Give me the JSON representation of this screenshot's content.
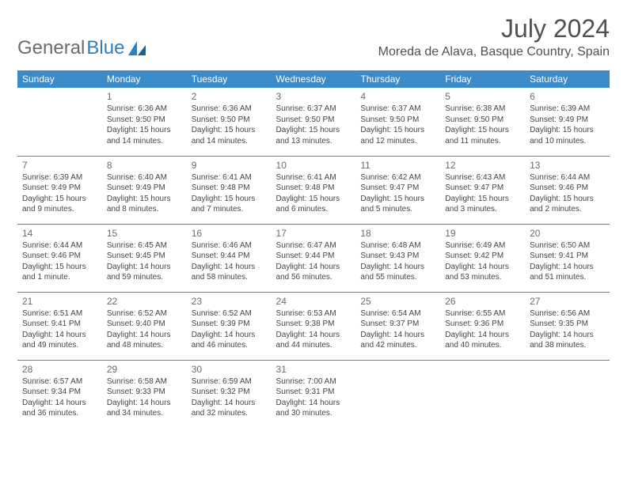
{
  "logo": {
    "text1": "General",
    "text2": "Blue"
  },
  "header": {
    "month": "July 2024",
    "location": "Moreda de Alava, Basque Country, Spain"
  },
  "colors": {
    "header_bg": "#3b8bc9",
    "header_text": "#ffffff",
    "cell_border": "#3b8bc9",
    "logo_gray": "#6b6b6b",
    "logo_blue": "#2f7fbf"
  },
  "weekdays": [
    "Sunday",
    "Monday",
    "Tuesday",
    "Wednesday",
    "Thursday",
    "Friday",
    "Saturday"
  ],
  "grid": [
    [
      null,
      {
        "n": "1",
        "r": "Sunrise: 6:36 AM",
        "s": "Sunset: 9:50 PM",
        "d1": "Daylight: 15 hours",
        "d2": "and 14 minutes."
      },
      {
        "n": "2",
        "r": "Sunrise: 6:36 AM",
        "s": "Sunset: 9:50 PM",
        "d1": "Daylight: 15 hours",
        "d2": "and 14 minutes."
      },
      {
        "n": "3",
        "r": "Sunrise: 6:37 AM",
        "s": "Sunset: 9:50 PM",
        "d1": "Daylight: 15 hours",
        "d2": "and 13 minutes."
      },
      {
        "n": "4",
        "r": "Sunrise: 6:37 AM",
        "s": "Sunset: 9:50 PM",
        "d1": "Daylight: 15 hours",
        "d2": "and 12 minutes."
      },
      {
        "n": "5",
        "r": "Sunrise: 6:38 AM",
        "s": "Sunset: 9:50 PM",
        "d1": "Daylight: 15 hours",
        "d2": "and 11 minutes."
      },
      {
        "n": "6",
        "r": "Sunrise: 6:39 AM",
        "s": "Sunset: 9:49 PM",
        "d1": "Daylight: 15 hours",
        "d2": "and 10 minutes."
      }
    ],
    [
      {
        "n": "7",
        "r": "Sunrise: 6:39 AM",
        "s": "Sunset: 9:49 PM",
        "d1": "Daylight: 15 hours",
        "d2": "and 9 minutes."
      },
      {
        "n": "8",
        "r": "Sunrise: 6:40 AM",
        "s": "Sunset: 9:49 PM",
        "d1": "Daylight: 15 hours",
        "d2": "and 8 minutes."
      },
      {
        "n": "9",
        "r": "Sunrise: 6:41 AM",
        "s": "Sunset: 9:48 PM",
        "d1": "Daylight: 15 hours",
        "d2": "and 7 minutes."
      },
      {
        "n": "10",
        "r": "Sunrise: 6:41 AM",
        "s": "Sunset: 9:48 PM",
        "d1": "Daylight: 15 hours",
        "d2": "and 6 minutes."
      },
      {
        "n": "11",
        "r": "Sunrise: 6:42 AM",
        "s": "Sunset: 9:47 PM",
        "d1": "Daylight: 15 hours",
        "d2": "and 5 minutes."
      },
      {
        "n": "12",
        "r": "Sunrise: 6:43 AM",
        "s": "Sunset: 9:47 PM",
        "d1": "Daylight: 15 hours",
        "d2": "and 3 minutes."
      },
      {
        "n": "13",
        "r": "Sunrise: 6:44 AM",
        "s": "Sunset: 9:46 PM",
        "d1": "Daylight: 15 hours",
        "d2": "and 2 minutes."
      }
    ],
    [
      {
        "n": "14",
        "r": "Sunrise: 6:44 AM",
        "s": "Sunset: 9:46 PM",
        "d1": "Daylight: 15 hours",
        "d2": "and 1 minute."
      },
      {
        "n": "15",
        "r": "Sunrise: 6:45 AM",
        "s": "Sunset: 9:45 PM",
        "d1": "Daylight: 14 hours",
        "d2": "and 59 minutes."
      },
      {
        "n": "16",
        "r": "Sunrise: 6:46 AM",
        "s": "Sunset: 9:44 PM",
        "d1": "Daylight: 14 hours",
        "d2": "and 58 minutes."
      },
      {
        "n": "17",
        "r": "Sunrise: 6:47 AM",
        "s": "Sunset: 9:44 PM",
        "d1": "Daylight: 14 hours",
        "d2": "and 56 minutes."
      },
      {
        "n": "18",
        "r": "Sunrise: 6:48 AM",
        "s": "Sunset: 9:43 PM",
        "d1": "Daylight: 14 hours",
        "d2": "and 55 minutes."
      },
      {
        "n": "19",
        "r": "Sunrise: 6:49 AM",
        "s": "Sunset: 9:42 PM",
        "d1": "Daylight: 14 hours",
        "d2": "and 53 minutes."
      },
      {
        "n": "20",
        "r": "Sunrise: 6:50 AM",
        "s": "Sunset: 9:41 PM",
        "d1": "Daylight: 14 hours",
        "d2": "and 51 minutes."
      }
    ],
    [
      {
        "n": "21",
        "r": "Sunrise: 6:51 AM",
        "s": "Sunset: 9:41 PM",
        "d1": "Daylight: 14 hours",
        "d2": "and 49 minutes."
      },
      {
        "n": "22",
        "r": "Sunrise: 6:52 AM",
        "s": "Sunset: 9:40 PM",
        "d1": "Daylight: 14 hours",
        "d2": "and 48 minutes."
      },
      {
        "n": "23",
        "r": "Sunrise: 6:52 AM",
        "s": "Sunset: 9:39 PM",
        "d1": "Daylight: 14 hours",
        "d2": "and 46 minutes."
      },
      {
        "n": "24",
        "r": "Sunrise: 6:53 AM",
        "s": "Sunset: 9:38 PM",
        "d1": "Daylight: 14 hours",
        "d2": "and 44 minutes."
      },
      {
        "n": "25",
        "r": "Sunrise: 6:54 AM",
        "s": "Sunset: 9:37 PM",
        "d1": "Daylight: 14 hours",
        "d2": "and 42 minutes."
      },
      {
        "n": "26",
        "r": "Sunrise: 6:55 AM",
        "s": "Sunset: 9:36 PM",
        "d1": "Daylight: 14 hours",
        "d2": "and 40 minutes."
      },
      {
        "n": "27",
        "r": "Sunrise: 6:56 AM",
        "s": "Sunset: 9:35 PM",
        "d1": "Daylight: 14 hours",
        "d2": "and 38 minutes."
      }
    ],
    [
      {
        "n": "28",
        "r": "Sunrise: 6:57 AM",
        "s": "Sunset: 9:34 PM",
        "d1": "Daylight: 14 hours",
        "d2": "and 36 minutes."
      },
      {
        "n": "29",
        "r": "Sunrise: 6:58 AM",
        "s": "Sunset: 9:33 PM",
        "d1": "Daylight: 14 hours",
        "d2": "and 34 minutes."
      },
      {
        "n": "30",
        "r": "Sunrise: 6:59 AM",
        "s": "Sunset: 9:32 PM",
        "d1": "Daylight: 14 hours",
        "d2": "and 32 minutes."
      },
      {
        "n": "31",
        "r": "Sunrise: 7:00 AM",
        "s": "Sunset: 9:31 PM",
        "d1": "Daylight: 14 hours",
        "d2": "and 30 minutes."
      },
      null,
      null,
      null
    ]
  ]
}
